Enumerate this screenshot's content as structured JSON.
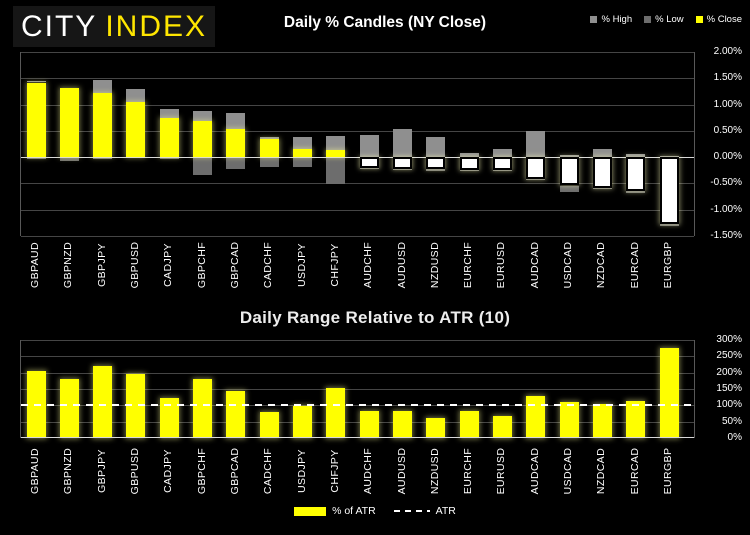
{
  "brand": {
    "word1": "CITY",
    "word2": "INDEX"
  },
  "top_chart": {
    "title": "Daily % Candles (NY Close)",
    "legend": [
      {
        "label": "% High",
        "color": "#8f8f8f"
      },
      {
        "label": "% Low",
        "color": "#6d6d6d"
      },
      {
        "label": "% Close",
        "color": "#ffff00"
      }
    ]
  },
  "bottom_chart": {
    "title": "Daily Range Relative to ATR (10)",
    "legend": [
      {
        "label": "% of ATR",
        "color": "#ffff00"
      },
      {
        "label": "ATR",
        "color": "#ffffff"
      }
    ]
  },
  "chart_data": [
    {
      "type": "candlestick",
      "title": "Daily % Candles (NY Close)",
      "categories": [
        "GBPAUD",
        "GBPNZD",
        "GBPJPY",
        "GBPUSD",
        "CADJPY",
        "GBPCHF",
        "GBPCAD",
        "CADCHF",
        "USDJPY",
        "CHFJPY",
        "AUDCHF",
        "AUDUSD",
        "NZDUSD",
        "EURCHF",
        "EURUSD",
        "AUDCAD",
        "USDCAD",
        "NZDCAD",
        "EURCAD",
        "EURGBP"
      ],
      "series": [
        {
          "name": "% High",
          "values": [
            1.44,
            1.32,
            1.46,
            1.29,
            0.91,
            0.88,
            0.84,
            0.38,
            0.38,
            0.4,
            0.42,
            0.53,
            0.38,
            0.08,
            0.16,
            0.5,
            0.04,
            0.16,
            0.06,
            0.03
          ]
        },
        {
          "name": "% Low",
          "values": [
            -0.03,
            -0.07,
            -0.04,
            -0.01,
            -0.03,
            -0.34,
            -0.22,
            -0.19,
            -0.19,
            -0.51,
            -0.23,
            -0.25,
            -0.26,
            -0.27,
            -0.27,
            -0.43,
            -0.67,
            -0.61,
            -0.68,
            -1.31
          ]
        },
        {
          "name": "% Close",
          "values": [
            1.42,
            1.31,
            1.22,
            1.05,
            0.74,
            0.68,
            0.53,
            0.35,
            0.16,
            0.14,
            -0.2,
            -0.22,
            -0.23,
            -0.25,
            -0.24,
            -0.41,
            -0.54,
            -0.58,
            -0.65,
            -1.28
          ]
        }
      ],
      "ylim": [
        -1.5,
        2.0
      ],
      "y_ticks": [
        {
          "v": 2.0,
          "label": "2.00%"
        },
        {
          "v": 1.5,
          "label": "1.50%"
        },
        {
          "v": 1.0,
          "label": "1.00%"
        },
        {
          "v": 0.5,
          "label": "0.50%"
        },
        {
          "v": 0.0,
          "label": "0.00%"
        },
        {
          "v": -0.5,
          "label": "-0.50%"
        },
        {
          "v": -1.0,
          "label": "-1.00%"
        },
        {
          "v": -1.5,
          "label": "-1.50%"
        }
      ],
      "grid": true,
      "legend_position": "top-right",
      "colors": {
        "high_wick": "#8f8f8f",
        "low_wick": "#6d6d6d",
        "close_up": "#ffff00",
        "close_down": "#ffffff"
      }
    },
    {
      "type": "bar",
      "title": "Daily Range Relative to ATR (10)",
      "categories": [
        "GBPAUD",
        "GBPNZD",
        "GBPJPY",
        "GBPUSD",
        "CADJPY",
        "GBPCHF",
        "GBPCAD",
        "CADCHF",
        "USDJPY",
        "CHFJPY",
        "AUDCHF",
        "AUDUSD",
        "NZDUSD",
        "EURCHF",
        "EURUSD",
        "AUDCAD",
        "USDCAD",
        "NZDCAD",
        "EURCAD",
        "EURGBP"
      ],
      "values": [
        205,
        182,
        221,
        195,
        124,
        181,
        145,
        81,
        98,
        153,
        84,
        84,
        61,
        84,
        68,
        129,
        110,
        104,
        114,
        277
      ],
      "unit": "% of ATR",
      "reference_line": {
        "label": "ATR",
        "value": 100,
        "style": "dashed"
      },
      "ylim": [
        0,
        300
      ],
      "y_ticks": [
        {
          "v": 300,
          "label": "300%"
        },
        {
          "v": 250,
          "label": "250%"
        },
        {
          "v": 200,
          "label": "200%"
        },
        {
          "v": 150,
          "label": "150%"
        },
        {
          "v": 100,
          "label": "100%"
        },
        {
          "v": 50,
          "label": "50%"
        },
        {
          "v": 0,
          "label": "0%"
        }
      ],
      "grid": true,
      "legend_position": "bottom-center",
      "colors": {
        "bar": "#ffff00",
        "line": "#ffffff"
      }
    }
  ]
}
